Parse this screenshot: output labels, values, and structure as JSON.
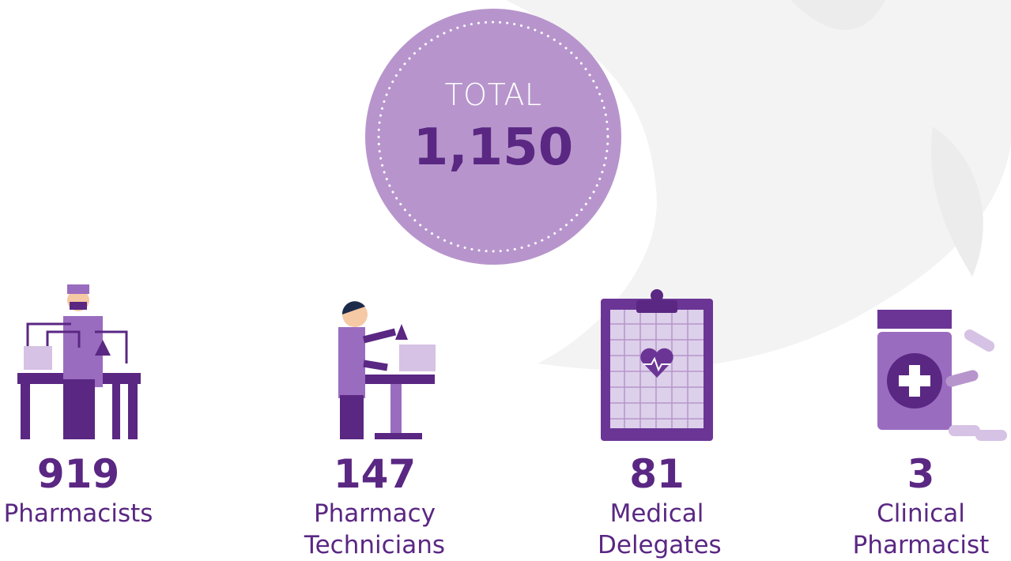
{
  "total": {
    "label": "TOTAL",
    "value": "1,150"
  },
  "items": [
    {
      "value": 919,
      "label": "Pharmacists"
    },
    {
      "value": 147,
      "label": "Pharmacy Technicians"
    },
    {
      "value": 81,
      "label": "Medical Delegates"
    },
    {
      "value": 3,
      "label": "Clinical Pharmacist"
    }
  ]
}
